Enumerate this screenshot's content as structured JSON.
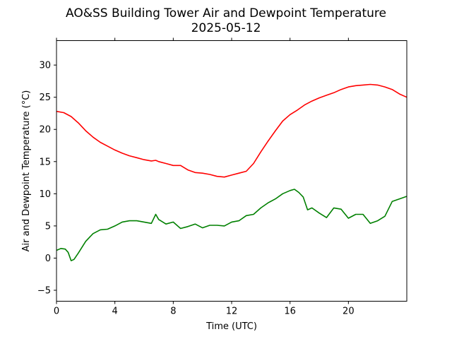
{
  "chart_data": {
    "type": "line",
    "title": "AO&SS Building Tower Air and Dewpoint Temperature",
    "subtitle": "2025-05-12",
    "xlabel": "Time (UTC)",
    "ylabel": "Air and Dewpoint Temperature (°C)",
    "xlim": [
      0,
      24
    ],
    "ylim": [
      -6.7,
      33.8
    ],
    "xticks": [
      0,
      4,
      8,
      12,
      16,
      20
    ],
    "yticks": [
      -5,
      0,
      5,
      10,
      15,
      20,
      25,
      30
    ],
    "grid": false,
    "legend": "none",
    "series": [
      {
        "color": "#ff0000",
        "x": [
          0,
          0.5,
          1,
          1.5,
          2,
          2.5,
          3,
          3.5,
          4,
          4.5,
          5,
          5.5,
          6,
          6.5,
          6.8,
          7,
          7.5,
          8,
          8.5,
          9,
          9.5,
          10,
          10.5,
          11,
          11.5,
          12,
          12.5,
          13,
          13.5,
          14,
          14.5,
          15,
          15.5,
          16,
          16.5,
          17,
          17.5,
          18,
          18.5,
          19,
          19.5,
          20,
          20.5,
          21,
          21.5,
          22,
          22.5,
          23,
          23.5,
          24
        ],
        "y": [
          22.8,
          22.6,
          22.0,
          21.0,
          19.8,
          18.8,
          18.0,
          17.4,
          16.8,
          16.3,
          15.9,
          15.6,
          15.3,
          15.1,
          15.2,
          15.0,
          14.7,
          14.4,
          14.4,
          13.7,
          13.3,
          13.2,
          13.0,
          12.7,
          12.6,
          12.9,
          13.2,
          13.5,
          14.7,
          16.5,
          18.2,
          19.8,
          21.3,
          22.3,
          23.0,
          23.8,
          24.4,
          24.9,
          25.3,
          25.7,
          26.2,
          26.6,
          26.8,
          26.9,
          27.0,
          26.9,
          26.6,
          26.2,
          25.5,
          25.0
        ]
      },
      {
        "color": "#008000",
        "x": [
          0,
          0.3,
          0.6,
          0.8,
          1,
          1.2,
          1.5,
          2,
          2.5,
          3,
          3.5,
          4,
          4.5,
          5,
          5.5,
          6,
          6.5,
          6.8,
          7,
          7.5,
          8,
          8.5,
          9,
          9.5,
          10,
          10.5,
          11,
          11.5,
          12,
          12.5,
          13,
          13.5,
          14,
          14.5,
          15,
          15.5,
          16,
          16.3,
          16.6,
          16.9,
          17.2,
          17.5,
          18,
          18.5,
          19,
          19.5,
          20,
          20.5,
          21,
          21.5,
          22,
          22.5,
          23,
          23.5,
          24
        ],
        "y": [
          1.2,
          1.5,
          1.4,
          0.9,
          -0.4,
          -0.2,
          0.8,
          2.6,
          3.8,
          4.4,
          4.5,
          5.0,
          5.6,
          5.8,
          5.8,
          5.6,
          5.4,
          6.8,
          6.0,
          5.3,
          5.6,
          4.6,
          4.9,
          5.3,
          4.7,
          5.1,
          5.1,
          5.0,
          5.6,
          5.8,
          6.6,
          6.8,
          7.8,
          8.6,
          9.2,
          10.0,
          10.5,
          10.7,
          10.2,
          9.5,
          7.5,
          7.8,
          7.0,
          6.3,
          7.8,
          7.6,
          6.2,
          6.8,
          6.8,
          5.4,
          5.8,
          6.5,
          8.8,
          9.2,
          9.6
        ]
      }
    ]
  }
}
